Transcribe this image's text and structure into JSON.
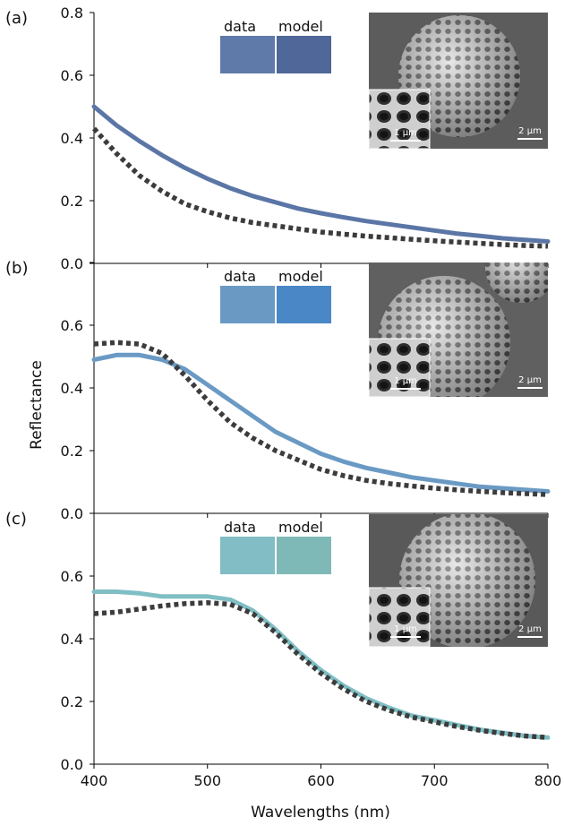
{
  "figure": {
    "xlabel": "Wavelengths (nm)",
    "ylabel": "Reflectance"
  },
  "chart_data": [
    {
      "type": "line",
      "panel_label": "(a)",
      "xlim": [
        400,
        800
      ],
      "ylim": [
        0,
        0.8
      ],
      "x_ticks": [
        "400",
        "500",
        "600",
        "700",
        "800"
      ],
      "y_ticks": [
        "0.0",
        "0.2",
        "0.4",
        "0.6",
        "0.8"
      ],
      "swatch_labels": [
        "data",
        "model"
      ],
      "swatch_colors": [
        "#5f7aa8",
        "#4f6799"
      ],
      "series": [
        {
          "color": "#5b76a6",
          "style": "solid",
          "x": [
            400,
            420,
            440,
            460,
            480,
            500,
            520,
            540,
            560,
            580,
            600,
            620,
            640,
            660,
            680,
            700,
            720,
            740,
            760,
            780,
            800
          ],
          "y": [
            0.5,
            0.44,
            0.39,
            0.345,
            0.305,
            0.27,
            0.24,
            0.215,
            0.195,
            0.175,
            0.16,
            0.147,
            0.135,
            0.125,
            0.115,
            0.105,
            0.095,
            0.088,
            0.08,
            0.075,
            0.07
          ]
        },
        {
          "color": "#3c3c3c",
          "style": "dotted",
          "x": [
            400,
            420,
            440,
            460,
            480,
            500,
            520,
            540,
            560,
            580,
            600,
            620,
            640,
            660,
            680,
            700,
            720,
            740,
            760,
            780,
            800
          ],
          "y": [
            0.43,
            0.35,
            0.28,
            0.23,
            0.19,
            0.165,
            0.145,
            0.13,
            0.12,
            0.11,
            0.1,
            0.093,
            0.087,
            0.082,
            0.077,
            0.072,
            0.068,
            0.064,
            0.06,
            0.057,
            0.055
          ]
        }
      ]
    },
    {
      "type": "line",
      "panel_label": "(b)",
      "xlim": [
        400,
        800
      ],
      "ylim": [
        0,
        0.8
      ],
      "x_ticks": [
        "400",
        "500",
        "600",
        "700",
        "800"
      ],
      "y_ticks": [
        "0.0",
        "0.2",
        "0.4",
        "0.6",
        ""
      ],
      "swatch_labels": [
        "data",
        "model"
      ],
      "swatch_colors": [
        "#6a9ac4",
        "#4a87c6"
      ],
      "series": [
        {
          "color": "#6a9ac4",
          "style": "solid",
          "x": [
            400,
            420,
            440,
            460,
            480,
            500,
            520,
            540,
            560,
            580,
            600,
            620,
            640,
            660,
            680,
            700,
            720,
            740,
            760,
            780,
            800
          ],
          "y": [
            0.49,
            0.505,
            0.505,
            0.49,
            0.46,
            0.41,
            0.36,
            0.31,
            0.26,
            0.225,
            0.19,
            0.165,
            0.145,
            0.13,
            0.115,
            0.105,
            0.095,
            0.085,
            0.08,
            0.075,
            0.07
          ]
        },
        {
          "color": "#3c3c3c",
          "style": "dotted",
          "x": [
            400,
            420,
            440,
            460,
            480,
            500,
            520,
            540,
            560,
            580,
            600,
            620,
            640,
            660,
            680,
            700,
            720,
            740,
            760,
            780,
            800
          ],
          "y": [
            0.54,
            0.545,
            0.54,
            0.51,
            0.44,
            0.36,
            0.29,
            0.24,
            0.2,
            0.17,
            0.14,
            0.12,
            0.105,
            0.095,
            0.087,
            0.08,
            0.075,
            0.07,
            0.066,
            0.063,
            0.06
          ]
        }
      ]
    },
    {
      "type": "line",
      "panel_label": "(c)",
      "xlim": [
        400,
        800
      ],
      "ylim": [
        0,
        0.8
      ],
      "x_ticks": [
        "400",
        "500",
        "600",
        "700",
        "800"
      ],
      "y_ticks": [
        "0.0",
        "0.2",
        "0.4",
        "0.6",
        ""
      ],
      "swatch_labels": [
        "data",
        "model"
      ],
      "swatch_colors": [
        "#82bcc4",
        "#7eb9b8"
      ],
      "series": [
        {
          "color": "#7fbfc4",
          "style": "solid",
          "x": [
            400,
            420,
            440,
            460,
            480,
            500,
            520,
            540,
            560,
            580,
            600,
            620,
            640,
            660,
            680,
            700,
            720,
            740,
            760,
            780,
            800
          ],
          "y": [
            0.55,
            0.55,
            0.545,
            0.535,
            0.535,
            0.535,
            0.525,
            0.49,
            0.43,
            0.36,
            0.3,
            0.25,
            0.21,
            0.18,
            0.155,
            0.14,
            0.125,
            0.11,
            0.1,
            0.09,
            0.085
          ]
        },
        {
          "color": "#3c3c3c",
          "style": "dotted",
          "x": [
            400,
            420,
            440,
            460,
            480,
            500,
            520,
            540,
            560,
            580,
            600,
            620,
            640,
            660,
            680,
            700,
            720,
            740,
            760,
            780,
            800
          ],
          "y": [
            0.48,
            0.485,
            0.495,
            0.505,
            0.512,
            0.515,
            0.51,
            0.48,
            0.42,
            0.35,
            0.29,
            0.24,
            0.2,
            0.172,
            0.15,
            0.135,
            0.12,
            0.108,
            0.098,
            0.09,
            0.085
          ]
        }
      ]
    }
  ],
  "insets": [
    {
      "scale_main": "2 μm",
      "scale_zoom": "1 μm"
    },
    {
      "scale_main": "2 μm",
      "scale_zoom": "1 μm"
    },
    {
      "scale_main": "2 μm",
      "scale_zoom": "1 μm"
    }
  ]
}
